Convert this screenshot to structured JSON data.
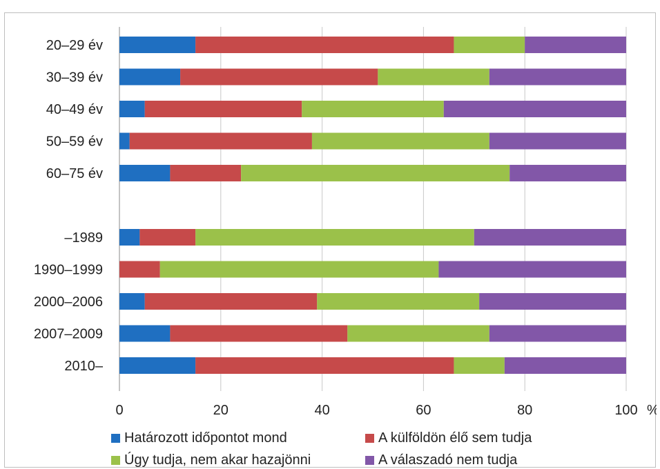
{
  "chart_data": {
    "type": "bar",
    "orientation": "horizontal",
    "stacked": true,
    "categories": [
      "20–29 év",
      "30–39 év",
      "40–49 év",
      "50–59 év",
      "60–75 év",
      "",
      "–1989",
      "1990–1999",
      "2000–2006",
      "2007–2009",
      "2010–"
    ],
    "series": [
      {
        "name": "Határozott időpontot mond",
        "color": "#1f6fc1",
        "values": [
          15,
          12,
          5,
          2,
          10,
          null,
          4,
          0,
          5,
          10,
          15
        ]
      },
      {
        "name": "A külföldön élő sem tudja",
        "color": "#c64a4a",
        "values": [
          51,
          39,
          31,
          36,
          14,
          null,
          11,
          8,
          34,
          35,
          51
        ]
      },
      {
        "name": "Úgy tudja, nem akar hazajönni",
        "color": "#9bc14a",
        "values": [
          14,
          22,
          28,
          35,
          53,
          null,
          55,
          55,
          32,
          28,
          10
        ]
      },
      {
        "name": "A válaszadó nem tudja",
        "color": "#8257a8",
        "values": [
          20,
          27,
          36,
          27,
          23,
          null,
          30,
          37,
          29,
          27,
          24
        ]
      }
    ],
    "xlim": [
      0,
      100
    ],
    "xticks": [
      0,
      20,
      40,
      60,
      80,
      100
    ],
    "xunit": "%",
    "grid": true,
    "legend_position": "bottom"
  }
}
